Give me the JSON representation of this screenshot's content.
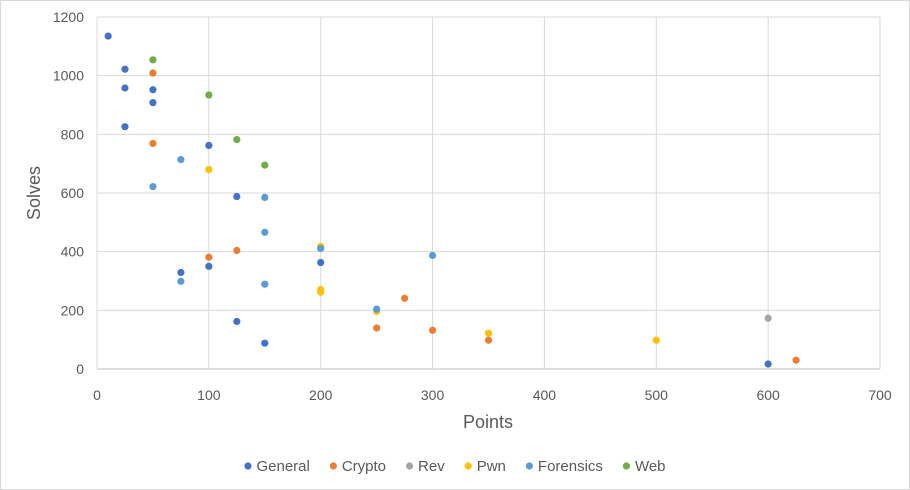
{
  "chart_data": {
    "type": "scatter",
    "title": "",
    "xlabel": "Points",
    "ylabel": "Solves",
    "xlim": [
      0,
      700
    ],
    "ylim": [
      0,
      1200
    ],
    "xticks": [
      "0",
      "100",
      "200",
      "300",
      "400",
      "500",
      "600",
      "700"
    ],
    "yticks": [
      "0",
      "200",
      "400",
      "600",
      "800",
      "1000",
      "1200"
    ],
    "grid": true,
    "legend_position": "bottom",
    "series": [
      {
        "name": "General",
        "color": "#4472c4",
        "points": [
          [
            10,
            1135
          ],
          [
            25,
            1022
          ],
          [
            25,
            958
          ],
          [
            25,
            826
          ],
          [
            50,
            952
          ],
          [
            50,
            908
          ],
          [
            100,
            762
          ],
          [
            125,
            588
          ],
          [
            200,
            363
          ],
          [
            75,
            329
          ],
          [
            100,
            350
          ],
          [
            125,
            162
          ],
          [
            150,
            88
          ],
          [
            600,
            17
          ]
        ]
      },
      {
        "name": "Crypto",
        "color": "#ed7d31",
        "points": [
          [
            50,
            1009
          ],
          [
            50,
            769
          ],
          [
            100,
            381
          ],
          [
            125,
            404
          ],
          [
            275,
            241
          ],
          [
            250,
            140
          ],
          [
            300,
            132
          ],
          [
            350,
            98
          ],
          [
            625,
            30
          ]
        ]
      },
      {
        "name": "Rev",
        "color": "#a5a5a5",
        "points": [
          [
            600,
            173
          ]
        ]
      },
      {
        "name": "Pwn",
        "color": "#ffc000",
        "points": [
          [
            100,
            680
          ],
          [
            200,
            418
          ],
          [
            200,
            271
          ],
          [
            200,
            262
          ],
          [
            250,
            196
          ],
          [
            350,
            122
          ],
          [
            500,
            98
          ]
        ]
      },
      {
        "name": "Forensics",
        "color": "#5b9bd5",
        "points": [
          [
            50,
            622
          ],
          [
            75,
            714
          ],
          [
            150,
            585
          ],
          [
            150,
            466
          ],
          [
            200,
            411
          ],
          [
            300,
            387
          ],
          [
            75,
            299
          ],
          [
            150,
            289
          ],
          [
            250,
            204
          ]
        ]
      },
      {
        "name": "Web",
        "color": "#70ad47",
        "points": [
          [
            50,
            1054
          ],
          [
            100,
            934
          ],
          [
            125,
            782
          ],
          [
            150,
            695
          ]
        ]
      }
    ]
  }
}
